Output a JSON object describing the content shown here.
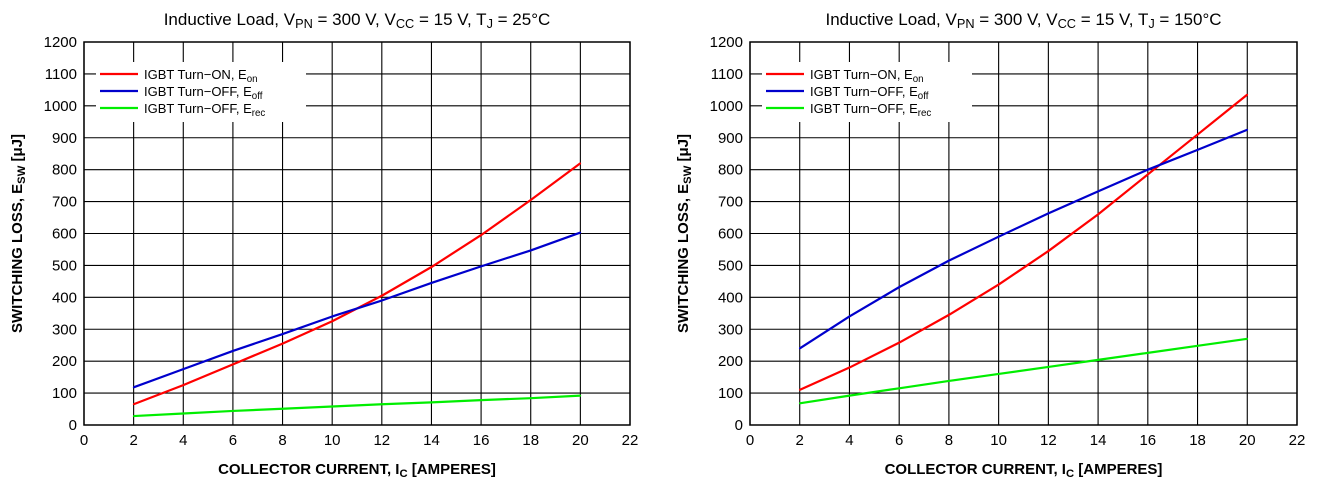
{
  "chart_data": [
    {
      "type": "line",
      "title": {
        "pre": "Inductive Load, V",
        "s1": "PN",
        "m1": " = 300 V, V",
        "s2": "CC",
        "m2": " = 15 V, T",
        "s3": "J",
        "post": " = 25°C"
      },
      "xlabel": {
        "pre": "COLLECTOR CURRENT, I",
        "sub": "C",
        "post": " [AMPERES]"
      },
      "ylabel": {
        "pre": "SWITCHING LOSS, E",
        "sub": "SW",
        "post": " [μJ]"
      },
      "xlim": [
        0,
        22
      ],
      "ylim": [
        0,
        1200
      ],
      "xticks": [
        0,
        2,
        4,
        6,
        8,
        10,
        12,
        14,
        16,
        18,
        20,
        22
      ],
      "yticks": [
        0,
        100,
        200,
        300,
        400,
        500,
        600,
        700,
        800,
        900,
        1000,
        1100,
        1200
      ],
      "grid": true,
      "legend_position": "top-left",
      "series": [
        {
          "name": "IGBT Turn−ON, E",
          "sub": "on",
          "color": "#ff0000",
          "x": [
            2,
            4,
            6,
            8,
            10,
            12,
            14,
            16,
            18,
            20
          ],
          "y": [
            65,
            125,
            190,
            255,
            325,
            405,
            495,
            595,
            705,
            820
          ]
        },
        {
          "name": "IGBT Turn−OFF, E",
          "sub": "off",
          "color": "#0000cc",
          "x": [
            2,
            4,
            6,
            8,
            10,
            12,
            14,
            16,
            18,
            20
          ],
          "y": [
            118,
            175,
            232,
            285,
            340,
            390,
            445,
            497,
            547,
            603
          ]
        },
        {
          "name": "IGBT Turn−OFF, E",
          "sub": "rec",
          "color": "#00ee00",
          "x": [
            2,
            4,
            6,
            8,
            10,
            12,
            14,
            16,
            18,
            20
          ],
          "y": [
            28,
            36,
            44,
            51,
            58,
            65,
            71,
            78,
            84,
            92
          ]
        }
      ]
    },
    {
      "type": "line",
      "title": {
        "pre": "Inductive Load, V",
        "s1": "PN",
        "m1": " = 300 V, V",
        "s2": "CC",
        "m2": " = 15 V, T",
        "s3": "J",
        "post": " = 150°C"
      },
      "xlabel": {
        "pre": "COLLECTOR CURRENT, I",
        "sub": "C",
        "post": " [AMPERES]"
      },
      "ylabel": {
        "pre": "SWITCHING LOSS, E",
        "sub": "SW",
        "post": " [μJ]"
      },
      "xlim": [
        0,
        22
      ],
      "ylim": [
        0,
        1200
      ],
      "xticks": [
        0,
        2,
        4,
        6,
        8,
        10,
        12,
        14,
        16,
        18,
        20,
        22
      ],
      "yticks": [
        0,
        100,
        200,
        300,
        400,
        500,
        600,
        700,
        800,
        900,
        1000,
        1100,
        1200
      ],
      "grid": true,
      "legend_position": "top-left",
      "series": [
        {
          "name": "IGBT Turn−ON, E",
          "sub": "on",
          "color": "#ff0000",
          "x": [
            2,
            4,
            6,
            8,
            10,
            12,
            14,
            16,
            18,
            20
          ],
          "y": [
            110,
            180,
            258,
            345,
            440,
            545,
            660,
            785,
            910,
            1035
          ]
        },
        {
          "name": "IGBT Turn−OFF, E",
          "sub": "off",
          "color": "#0000cc",
          "x": [
            2,
            4,
            6,
            8,
            10,
            12,
            14,
            16,
            18,
            20
          ],
          "y": [
            240,
            340,
            432,
            515,
            590,
            663,
            732,
            800,
            862,
            925
          ]
        },
        {
          "name": "IGBT Turn−OFF, E",
          "sub": "rec",
          "color": "#00ee00",
          "x": [
            2,
            4,
            6,
            8,
            10,
            12,
            14,
            16,
            18,
            20
          ],
          "y": [
            68,
            92,
            115,
            138,
            160,
            182,
            204,
            226,
            248,
            270
          ]
        }
      ]
    }
  ]
}
